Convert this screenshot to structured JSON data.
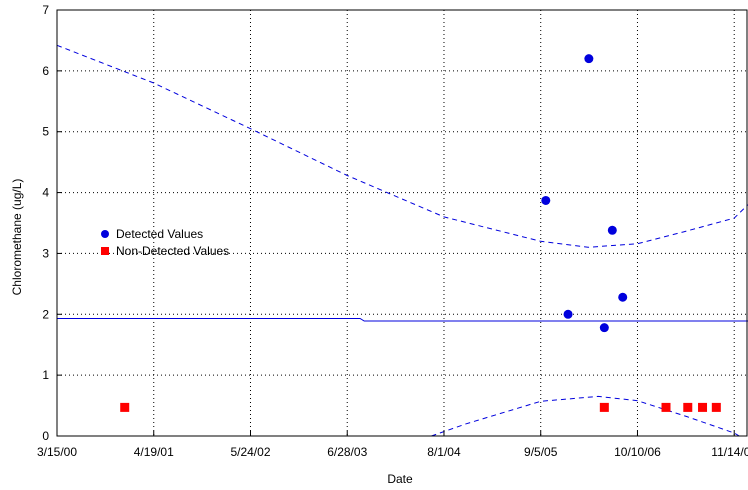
{
  "chart_data": {
    "type": "scatter",
    "xlabel": "Date",
    "ylabel": "Chloromethane (ug/L)",
    "x_tick_labels": [
      "3/15/00",
      "4/19/01",
      "5/24/02",
      "6/28/03",
      "8/1/04",
      "9/5/05",
      "10/10/06",
      "11/14/07"
    ],
    "x_ticks": [
      "2000-03-15",
      "2001-04-19",
      "2002-05-24",
      "2003-06-28",
      "2004-08-01",
      "2005-09-05",
      "2006-10-10",
      "2007-11-14"
    ],
    "xlim": [
      "2000-03-15",
      "2008-01-10"
    ],
    "ylim": [
      0,
      7
    ],
    "y_ticks": [
      0,
      1,
      2,
      3,
      4,
      5,
      6,
      7
    ],
    "grid": true,
    "legend_position": "left-middle",
    "series": [
      {
        "name": "Detected Values",
        "marker": "circle",
        "color": "#0000dd",
        "points": [
          {
            "x": "2005-09-26",
            "y": 3.87
          },
          {
            "x": "2005-12-27",
            "y": 2.0
          },
          {
            "x": "2006-03-23",
            "y": 6.2
          },
          {
            "x": "2006-05-26",
            "y": 1.78
          },
          {
            "x": "2006-06-28",
            "y": 3.38
          },
          {
            "x": "2006-08-10",
            "y": 2.28
          }
        ]
      },
      {
        "name": "Non-Detected Values",
        "marker": "square",
        "color": "#ff0000",
        "points": [
          {
            "x": "2000-12-20",
            "y": 0.47
          },
          {
            "x": "2006-05-26",
            "y": 0.47
          },
          {
            "x": "2007-02-05",
            "y": 0.47
          },
          {
            "x": "2007-05-06",
            "y": 0.47
          },
          {
            "x": "2007-07-06",
            "y": 0.47
          },
          {
            "x": "2007-09-01",
            "y": 0.47
          }
        ]
      }
    ],
    "fit_line": {
      "style": "solid",
      "color": "#0000dd",
      "points": [
        {
          "x": "2000-03-15",
          "y": 1.93
        },
        {
          "x": "2003-08-20",
          "y": 1.93
        },
        {
          "x": "2003-09-06",
          "y": 1.89
        },
        {
          "x": "2008-01-10",
          "y": 1.89
        }
      ]
    },
    "upper_band": {
      "style": "dashed",
      "color": "#0000dd",
      "points": [
        {
          "x": "2000-03-15",
          "y": 6.42
        },
        {
          "x": "2001-04-19",
          "y": 5.8
        },
        {
          "x": "2002-05-24",
          "y": 5.05
        },
        {
          "x": "2003-06-28",
          "y": 4.28
        },
        {
          "x": "2004-08-01",
          "y": 3.6
        },
        {
          "x": "2005-09-05",
          "y": 3.2
        },
        {
          "x": "2006-03-20",
          "y": 3.1
        },
        {
          "x": "2006-10-10",
          "y": 3.16
        },
        {
          "x": "2007-04-15",
          "y": 3.35
        },
        {
          "x": "2007-11-14",
          "y": 3.58
        },
        {
          "x": "2008-01-10",
          "y": 3.8
        }
      ]
    },
    "lower_band": {
      "style": "dashed",
      "color": "#0000dd",
      "points": [
        {
          "x": "2004-06-10",
          "y": 0.0
        },
        {
          "x": "2004-11-01",
          "y": 0.2
        },
        {
          "x": "2005-09-05",
          "y": 0.57
        },
        {
          "x": "2006-05-01",
          "y": 0.65
        },
        {
          "x": "2006-10-10",
          "y": 0.58
        },
        {
          "x": "2007-05-01",
          "y": 0.32
        },
        {
          "x": "2007-11-14",
          "y": 0.05
        },
        {
          "x": "2007-12-05",
          "y": 0.0
        }
      ]
    }
  }
}
